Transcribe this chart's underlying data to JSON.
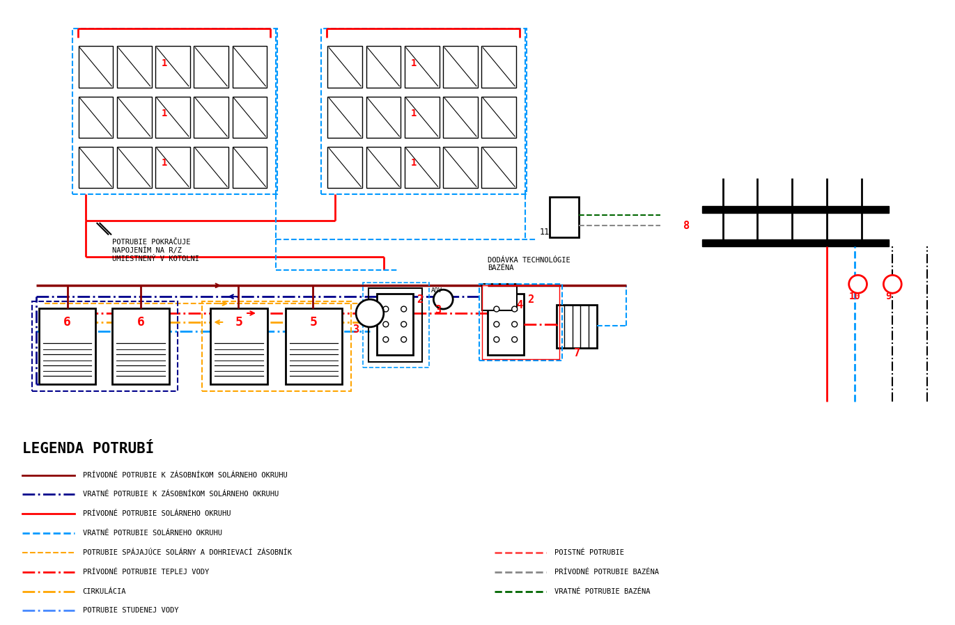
{
  "bg_color": "#ffffff",
  "legend_title": "LEGENDA POTRUBÍ",
  "legend_items": [
    {
      "label": "PRÍVODNÉ POTRUBIE K ZÁSOBNÍKOM SOLÁRNEHO OKRUHU",
      "color": "#8B0000",
      "linestyle": "solid",
      "lw": 2
    },
    {
      "label": "VRATNÉ POTRUBIE K ZÁSOBNÍKOM SOLÁRNEHO OKRUHU",
      "color": "#00008B",
      "linestyle": "dashdot",
      "lw": 2
    },
    {
      "label": "PRÍVODNÉ POTRUBIE SOLÁRNEHO OKRUHU",
      "color": "#FF0000",
      "linestyle": "solid",
      "lw": 2
    },
    {
      "label": "VRATNÉ POTRUBIE SOLÁRNEHO OKRUHU",
      "color": "#0099FF",
      "linestyle": "dashed",
      "lw": 2
    },
    {
      "label": "POTRUBIE SPÁJAJÚCE SOLÁRNY A DOHRIEVACÍ ZÁSOBNÍK",
      "color": "#FFA500",
      "linestyle": "dashed",
      "lw": 1.5
    },
    {
      "label": "PRÍVODNÉ POTRUBIE TEPLEJ VODY",
      "color": "#FF0000",
      "linestyle": "dashdot",
      "lw": 2
    },
    {
      "label": "CIRKULÁCIA",
      "color": "#FFA500",
      "linestyle": "dashdot",
      "lw": 2
    },
    {
      "label": "POTRUBIE STUDENEJ VODY",
      "color": "#4488FF",
      "linestyle": "dashdot",
      "lw": 2
    }
  ],
  "legend_items_right": [
    {
      "label": "POISTNÉ POTRUBIE",
      "color": "#FF4444",
      "linestyle": "dashed",
      "lw": 2
    },
    {
      "label": "PRÍVODNÉ POTRUBIE BAZÉNA",
      "color": "#888888",
      "linestyle": "dashed",
      "lw": 2
    },
    {
      "label": "VRATNÉ POTRUBIE BAZÉNA",
      "color": "#006600",
      "linestyle": "dashed",
      "lw": 2
    }
  ],
  "annotation": "POTRUBIE POKRAČUJE\nNAPOJENÍM NA R/Z\nUMIESTNENÝ V KOTOLNI",
  "dodavka_text": "DODÁVKA TECHNOLÓGIE\nBAZÉNA"
}
